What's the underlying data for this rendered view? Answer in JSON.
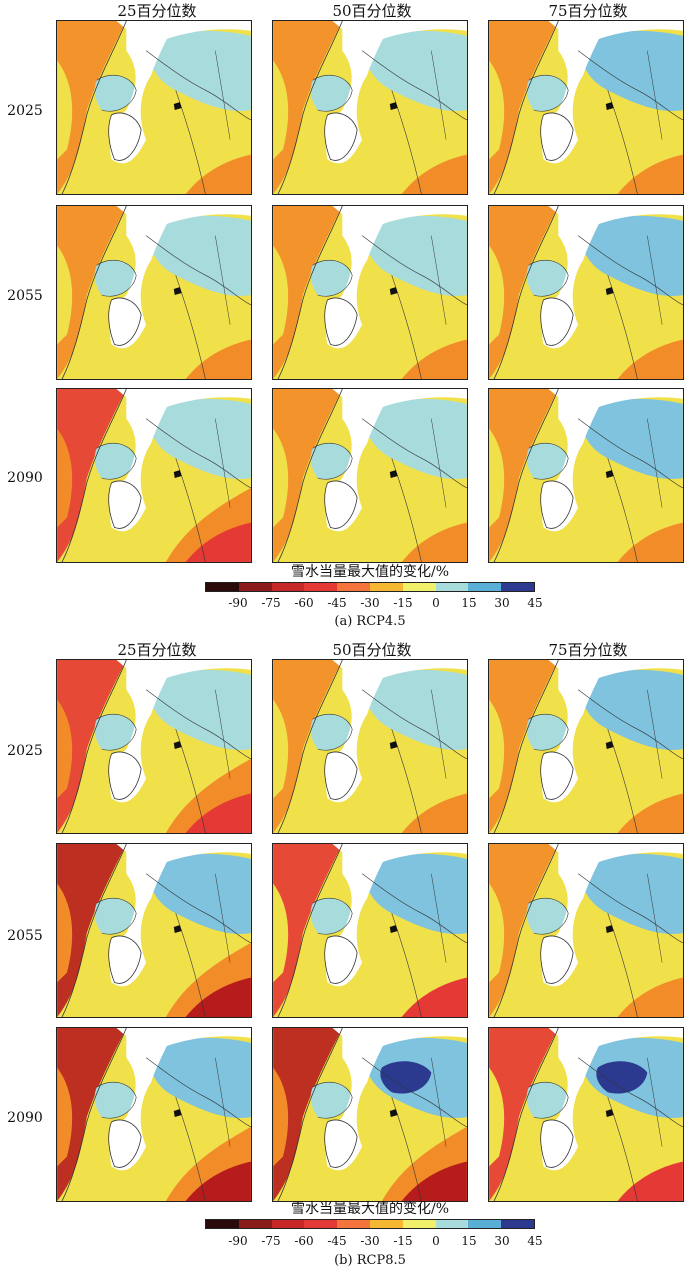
{
  "column_headers": [
    "25百分位数",
    "50百分位数",
    "75百分位数"
  ],
  "row_labels": [
    "2025",
    "2055",
    "2090"
  ],
  "legend": {
    "title": "雪水当量最大值的变化/%",
    "ticks": [
      "-90",
      "-75",
      "-60",
      "-45",
      "-30",
      "-15",
      "0",
      "15",
      "30",
      "45"
    ],
    "colors": [
      "#2a0b0a",
      "#8b1a1a",
      "#c62828",
      "#e53935",
      "#f4743b",
      "#f6b733",
      "#f1f06a",
      "#a8dcdc",
      "#5aafd6",
      "#2e3a8f"
    ]
  },
  "scenarios": [
    {
      "caption": "(a) RCP4.5"
    },
    {
      "caption": "(b) RCP8.5"
    }
  ],
  "map_colors": {
    "deep_red": "#b71c1c",
    "red": "#e53935",
    "orange": "#f28c28",
    "yellow": "#f0e04a",
    "light_blue": "#a8dcdc",
    "mid_blue": "#7fc3df",
    "dark_blue": "#2b3a8e",
    "land_line": "#333333"
  }
}
